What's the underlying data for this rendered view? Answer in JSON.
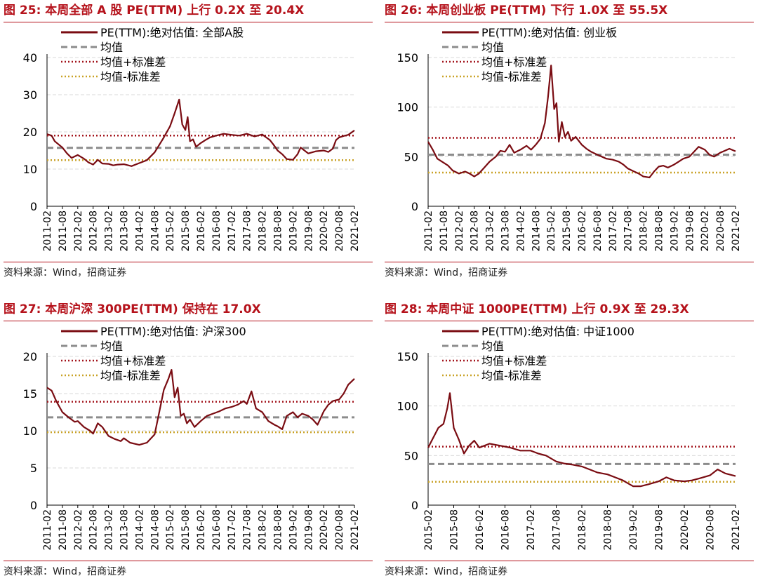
{
  "colors": {
    "title": "#b5121b",
    "pe_line": "#7a0c12",
    "mean_line": "#8c8c8c",
    "plus_sd_line": "#a3141c",
    "minus_sd_line": "#c9a227",
    "grid": "#d9d9d9"
  },
  "source_text": "资料来源：Wind，招商证券",
  "chart_data": [
    {
      "type": "line",
      "title": "图 25:  本周全部 A 股 PE(TTM) 上行 0.2X 至 20.4X",
      "ylim": [
        0,
        40
      ],
      "yticks": [
        "0",
        "10",
        "20",
        "30",
        "40"
      ],
      "x_ticks": [
        "2011-02",
        "2011-08",
        "2012-02",
        "2012-08",
        "2013-02",
        "2013-08",
        "2014-02",
        "2014-08",
        "2015-02",
        "2015-08",
        "2016-02",
        "2016-08",
        "2017-02",
        "2017-08",
        "2018-02",
        "2018-08",
        "2019-02",
        "2019-08",
        "2020-02",
        "2020-08",
        "2021-02"
      ],
      "legend": [
        "PE(TTM):绝对估值: 全部A股",
        "均值",
        "均值+标准差",
        "均值-标准差"
      ],
      "mean": 15.7,
      "plus_sd": 19.0,
      "minus_sd": 12.4,
      "series": [
        {
          "name": "PE(TTM):绝对估值: 全部A股",
          "x": [
            0,
            0.3,
            0.5,
            1,
            1.3,
            1.6,
            2,
            2.4,
            2.7,
            3,
            3.3,
            3.6,
            4,
            4.3,
            4.6,
            5,
            5.5,
            6,
            6.5,
            7,
            7.3,
            7.6,
            8,
            8.3,
            8.6,
            8.8,
            9,
            9.15,
            9.3,
            9.5,
            9.7,
            10,
            10.3,
            10.6,
            11,
            11.5,
            12,
            12.5,
            13,
            13.5,
            14,
            14.5,
            14.8,
            15,
            15.3,
            15.6,
            16,
            16.3,
            16.5,
            17,
            17.5,
            18,
            18.3,
            18.6,
            18.8,
            19,
            19.3,
            19.6,
            20
          ],
          "values": [
            19.4,
            19.0,
            17.5,
            15.8,
            14.2,
            13.0,
            13.8,
            12.8,
            11.8,
            11.2,
            12.5,
            11.5,
            11.4,
            11.0,
            11.2,
            11.3,
            10.8,
            11.6,
            12.4,
            14.5,
            16.5,
            18.5,
            21.5,
            25.0,
            28.7,
            22.0,
            20.5,
            24.0,
            17.5,
            18.0,
            16.0,
            17.0,
            17.8,
            18.5,
            19.0,
            19.5,
            19.2,
            19.0,
            19.5,
            18.8,
            19.3,
            17.8,
            16.2,
            15.0,
            14.0,
            12.7,
            12.5,
            14.0,
            15.8,
            14.2,
            14.8,
            15.0,
            14.6,
            15.5,
            17.8,
            18.5,
            18.9,
            19.2,
            20.4
          ]
        }
      ]
    },
    {
      "type": "line",
      "title": "图 26:  本周创业板 PE(TTM) 下行 1.0X 至 55.5X",
      "ylim": [
        0,
        150
      ],
      "yticks": [
        "0",
        "50",
        "100",
        "150"
      ],
      "x_ticks": [
        "2011-02",
        "2011-08",
        "2012-02",
        "2012-08",
        "2013-02",
        "2013-08",
        "2014-02",
        "2014-08",
        "2015-02",
        "2015-08",
        "2016-02",
        "2016-08",
        "2017-02",
        "2017-08",
        "2018-02",
        "2018-08",
        "2019-02",
        "2019-08",
        "2020-02",
        "2020-08",
        "2021-02"
      ],
      "legend": [
        "PE(TTM):绝对估值: 创业板",
        "均值",
        "均值+标准差",
        "均值-标准差"
      ],
      "mean": 52,
      "plus_sd": 69,
      "minus_sd": 34,
      "series": [
        {
          "name": "PE(TTM):绝对估值: 创业板",
          "x": [
            0,
            0.3,
            0.6,
            1,
            1.3,
            1.6,
            2,
            2.4,
            2.7,
            3,
            3.3,
            3.6,
            4,
            4.4,
            4.7,
            5,
            5.3,
            5.6,
            6,
            6.4,
            6.7,
            7,
            7.3,
            7.6,
            7.8,
            8,
            8.2,
            8.35,
            8.5,
            8.7,
            8.9,
            9.1,
            9.3,
            9.6,
            10,
            10.3,
            10.6,
            11,
            11.3,
            11.6,
            12,
            12.4,
            12.7,
            13,
            13.4,
            13.7,
            14,
            14.4,
            14.7,
            15,
            15.3,
            15.6,
            16,
            16.3,
            16.6,
            17,
            17.3,
            17.6,
            18,
            18.3,
            18.6,
            19,
            19.3,
            19.6,
            20
          ],
          "values": [
            65,
            57,
            48,
            44,
            41,
            36,
            33,
            35,
            33,
            30,
            33,
            38,
            45,
            50,
            56,
            55,
            62,
            54,
            57,
            61,
            57,
            62,
            68,
            84,
            110,
            142,
            98,
            104,
            65,
            85,
            70,
            75,
            66,
            70,
            62,
            58,
            55,
            52,
            50,
            48,
            47,
            45,
            42,
            38,
            35,
            33,
            30,
            29,
            35,
            40,
            41,
            39,
            42,
            45,
            48,
            50,
            55,
            60,
            57,
            52,
            50,
            54,
            56,
            58,
            55.5
          ]
        }
      ]
    },
    {
      "type": "line",
      "title": "图 27:  本周沪深 300PE(TTM) 保持在 17.0X",
      "ylim": [
        0,
        20
      ],
      "yticks": [
        "0",
        "5",
        "10",
        "15",
        "20"
      ],
      "x_ticks": [
        "2011-02",
        "2011-08",
        "2012-02",
        "2012-08",
        "2013-02",
        "2013-08",
        "2014-02",
        "2014-08",
        "2015-02",
        "2015-08",
        "2016-02",
        "2016-08",
        "2017-02",
        "2017-08",
        "2018-02",
        "2018-08",
        "2019-02",
        "2019-08",
        "2020-02",
        "2020-08",
        "2021-02"
      ],
      "legend": [
        "PE(TTM):绝对估值: 沪深300",
        "均值",
        "均值+标准差",
        "均值-标准差"
      ],
      "mean": 11.8,
      "plus_sd": 13.9,
      "minus_sd": 9.8,
      "series": [
        {
          "name": "PE(TTM):绝对估值: 沪深300",
          "x": [
            0,
            0.3,
            0.6,
            1,
            1.4,
            1.8,
            2,
            2.4,
            2.8,
            3,
            3.3,
            3.6,
            4,
            4.4,
            4.8,
            5,
            5.4,
            5.8,
            6,
            6.5,
            7,
            7.3,
            7.6,
            7.9,
            8.1,
            8.3,
            8.5,
            8.7,
            8.9,
            9.1,
            9.3,
            9.6,
            10,
            10.4,
            10.8,
            11.2,
            11.6,
            12,
            12.4,
            12.8,
            13,
            13.3,
            13.6,
            14,
            14.4,
            14.8,
            15,
            15.3,
            15.6,
            16,
            16.3,
            16.6,
            17,
            17.3,
            17.6,
            18,
            18.3,
            18.6,
            19,
            19.3,
            19.6,
            20
          ],
          "values": [
            15.8,
            15.4,
            14,
            12.5,
            11.8,
            11.2,
            11.3,
            10.5,
            10,
            9.6,
            11,
            10.5,
            9.3,
            8.9,
            8.6,
            9,
            8.4,
            8.2,
            8.1,
            8.4,
            9.5,
            12.5,
            15.5,
            17,
            18.2,
            14.5,
            15.8,
            12,
            12.3,
            11,
            11.5,
            10.5,
            11.3,
            12,
            12.3,
            12.6,
            13,
            13.2,
            13.5,
            14,
            13.6,
            15.3,
            13,
            12.5,
            11.3,
            10.8,
            10.6,
            10.2,
            12,
            12.5,
            11.8,
            12.3,
            12,
            11.5,
            10.8,
            12.6,
            13.5,
            14,
            14.2,
            15,
            16.2,
            17
          ]
        }
      ]
    },
    {
      "type": "line",
      "title": "图 28:  本周中证 1000PE(TTM) 上行 0.9X 至 29.3X",
      "ylim": [
        0,
        150
      ],
      "yticks": [
        "0",
        "50",
        "100",
        "150"
      ],
      "x_ticks": [
        "2015-02",
        "2015-08",
        "2016-02",
        "2016-08",
        "2017-02",
        "2017-08",
        "2018-02",
        "2018-08",
        "2019-02",
        "2019-08",
        "2020-02",
        "2020-08",
        "2021-02"
      ],
      "legend": [
        "PE(TTM):绝对估值: 中证1000",
        "均值",
        "均值+标准差",
        "均值-标准差"
      ],
      "mean": 41.5,
      "plus_sd": 59,
      "minus_sd": 23.5,
      "series": [
        {
          "name": "PE(TTM):绝对估值: 中证1000",
          "x": [
            0,
            0.2,
            0.4,
            0.6,
            0.75,
            0.85,
            1,
            1.2,
            1.4,
            1.6,
            1.8,
            2,
            2.4,
            2.8,
            3.2,
            3.6,
            4,
            4.3,
            4.6,
            5,
            5.3,
            5.6,
            6,
            6.3,
            6.6,
            7,
            7.3,
            7.6,
            7.8,
            8,
            8.3,
            8.6,
            9,
            9.3,
            9.6,
            10,
            10.3,
            10.6,
            11,
            11.3,
            11.6,
            12
          ],
          "values": [
            58,
            68,
            78,
            82,
            98,
            113,
            78,
            66,
            52,
            60,
            65,
            58,
            62,
            60,
            58,
            55,
            55,
            52,
            50,
            44,
            42,
            41,
            39,
            36,
            33,
            31,
            28,
            25,
            22,
            19,
            19,
            21,
            24,
            28,
            25,
            24,
            25,
            27,
            30,
            36,
            32,
            29.3
          ]
        }
      ]
    }
  ]
}
